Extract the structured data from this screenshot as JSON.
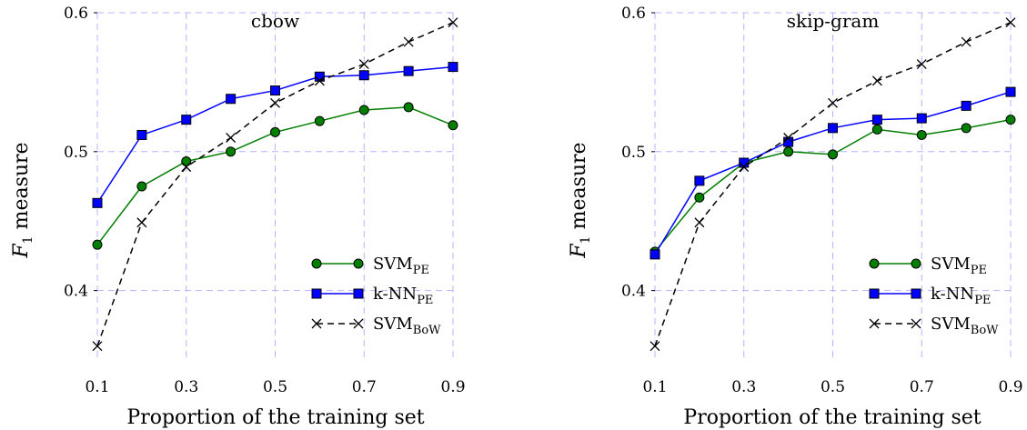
{
  "chart_data": [
    {
      "type": "line",
      "title": "cbow",
      "xlabel": "Proportion of the training set",
      "ylabel": "F",
      "ylabel_sub": "1",
      "ylabel_rest": " measure",
      "xlim": [
        0.1,
        0.9
      ],
      "ylim": [
        0.35,
        0.6
      ],
      "xticks": [
        0.1,
        0.3,
        0.5,
        0.7,
        0.9
      ],
      "xtick_labels": [
        "0.1",
        "0.3",
        "0.5",
        "0.7",
        "0.9"
      ],
      "yticks": [
        0.4,
        0.5,
        0.6
      ],
      "ytick_labels": [
        "0.4",
        "0.5",
        "0.6"
      ],
      "grid": true,
      "legend_position": "bottom-right",
      "x": [
        0.1,
        0.2,
        0.3,
        0.4,
        0.5,
        0.6,
        0.7,
        0.8,
        0.9
      ],
      "series": [
        {
          "name": "SVM",
          "subscript": "PE",
          "color": "#007f00",
          "marker": "circle",
          "dash": "solid",
          "values": [
            0.433,
            0.475,
            0.493,
            0.5,
            0.514,
            0.522,
            0.53,
            0.532,
            0.519
          ]
        },
        {
          "name": "k-NN",
          "subscript": "PE",
          "color": "#0000ff",
          "marker": "square",
          "dash": "solid",
          "values": [
            0.463,
            0.512,
            0.523,
            0.538,
            0.544,
            0.554,
            0.555,
            0.558,
            0.561
          ]
        },
        {
          "name": "SVM",
          "subscript": "BoW",
          "color": "#000000",
          "marker": "x",
          "dash": "dashed",
          "values": [
            0.36,
            0.449,
            0.489,
            0.51,
            0.535,
            0.551,
            0.563,
            0.579,
            0.593
          ]
        }
      ]
    },
    {
      "type": "line",
      "title": "skip-gram",
      "xlabel": "Proportion of the training set",
      "ylabel": "F",
      "ylabel_sub": "1",
      "ylabel_rest": " measure",
      "xlim": [
        0.1,
        0.9
      ],
      "ylim": [
        0.35,
        0.6
      ],
      "xticks": [
        0.1,
        0.3,
        0.5,
        0.7,
        0.9
      ],
      "xtick_labels": [
        "0.1",
        "0.3",
        "0.5",
        "0.7",
        "0.9"
      ],
      "yticks": [
        0.4,
        0.5,
        0.6
      ],
      "ytick_labels": [
        "0.4",
        "0.5",
        "0.6"
      ],
      "grid": true,
      "legend_position": "bottom-right",
      "x": [
        0.1,
        0.2,
        0.3,
        0.4,
        0.5,
        0.6,
        0.7,
        0.8,
        0.9
      ],
      "series": [
        {
          "name": "SVM",
          "subscript": "PE",
          "color": "#007f00",
          "marker": "circle",
          "dash": "solid",
          "values": [
            0.428,
            0.467,
            0.492,
            0.5,
            0.498,
            0.516,
            0.512,
            0.517,
            0.523
          ]
        },
        {
          "name": "k-NN",
          "subscript": "PE",
          "color": "#0000ff",
          "marker": "square",
          "dash": "solid",
          "values": [
            0.426,
            0.479,
            0.492,
            0.507,
            0.517,
            0.523,
            0.524,
            0.533,
            0.543
          ]
        },
        {
          "name": "SVM",
          "subscript": "BoW",
          "color": "#000000",
          "marker": "x",
          "dash": "dashed",
          "values": [
            0.36,
            0.449,
            0.489,
            0.51,
            0.535,
            0.551,
            0.563,
            0.579,
            0.593
          ]
        }
      ]
    }
  ]
}
